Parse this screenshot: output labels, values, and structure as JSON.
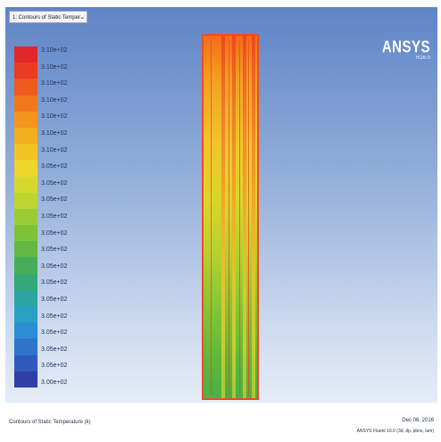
{
  "view_selector": {
    "label": "1: Contours of Static Temper",
    "icon": "chevron-down-icon"
  },
  "logo": {
    "brand": "ANSYS",
    "version": "R16.0"
  },
  "legend": {
    "labels": [
      "3.10e+02",
      "3.10e+02",
      "3.10e+02",
      "3.10e+02",
      "3.10e+02",
      "3.10e+02",
      "3.10e+02",
      "3.05e+02",
      "3.05e+02",
      "3.05e+02",
      "3.05e+02",
      "3.05e+02",
      "3.05e+02",
      "3.05e+02",
      "3.05e+02",
      "3.05e+02",
      "3.05e+02",
      "3.05e+02",
      "3.05e+02",
      "3.05e+02",
      "3.00e+02"
    ],
    "colors": [
      "#e3262a",
      "#eb3a22",
      "#ef5a1f",
      "#f2781c",
      "#f3941d",
      "#f2ad20",
      "#f1c423",
      "#eed62a",
      "#d8d92d",
      "#bcd531",
      "#9ccc35",
      "#7fc23a",
      "#62b842",
      "#45ad57",
      "#33a879",
      "#2ca5a0",
      "#2aa0c4",
      "#2b8ed4",
      "#2f74cc",
      "#3158bd",
      "#2f3fa8"
    ]
  },
  "contour_colors": {
    "hot": "#e8421f",
    "mid": "#f1c52a",
    "cool": "#49b04a",
    "outline": "#f04a2a"
  },
  "footer": {
    "caption": "Contours of Static Temperature (k)",
    "date": "Dec 06, 2016",
    "solver": "ANSYS Fluent 16.0 (3d, dp, pbns, lam)"
  }
}
